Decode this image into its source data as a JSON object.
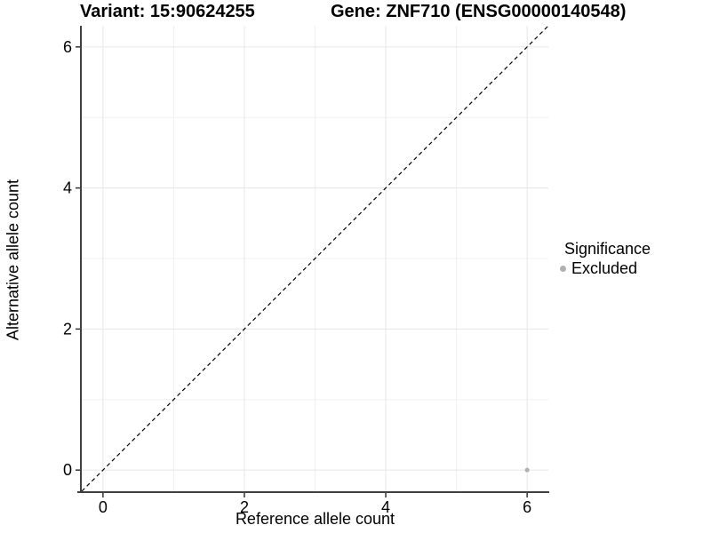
{
  "titles": {
    "variant": "Variant: 15:90624255",
    "gene": "Gene: ZNF710 (ENSG00000140548)"
  },
  "axes": {
    "x_label": "Reference allele count",
    "y_label": "Alternative allele count"
  },
  "legend": {
    "title": "Significance",
    "items": [
      {
        "label": "Excluded",
        "color": "#b0b0b0"
      }
    ]
  },
  "colors": {
    "background": "#ffffff",
    "grid_major": "#e6e6e6",
    "grid_minor": "#f0f0f0",
    "axis_line": "#404040",
    "tick_mark": "#333333",
    "reference_line": "#000000",
    "point": "#b0b0b0",
    "text": "#000000"
  },
  "chart_data": {
    "type": "scatter",
    "title": "Variant: 15:90624255 | Gene: ZNF710 (ENSG00000140548)",
    "xlabel": "Reference allele count",
    "ylabel": "Alternative allele count",
    "xlim": [
      -0.3,
      6.3
    ],
    "ylim": [
      -0.3,
      6.3
    ],
    "x_ticks": [
      0,
      2,
      4,
      6
    ],
    "y_ticks": [
      0,
      2,
      4,
      6
    ],
    "x_minor_ticks": [
      1,
      3,
      5
    ],
    "y_minor_ticks": [
      1,
      3,
      5
    ],
    "grid": true,
    "legend_position": "right",
    "series": [
      {
        "name": "Excluded",
        "color": "#b0b0b0",
        "points": [
          {
            "x": 6,
            "y": 0
          }
        ]
      }
    ],
    "reference_line": {
      "kind": "identity",
      "slope": 1,
      "intercept": 0,
      "style": "dashed",
      "color": "#000000"
    }
  }
}
